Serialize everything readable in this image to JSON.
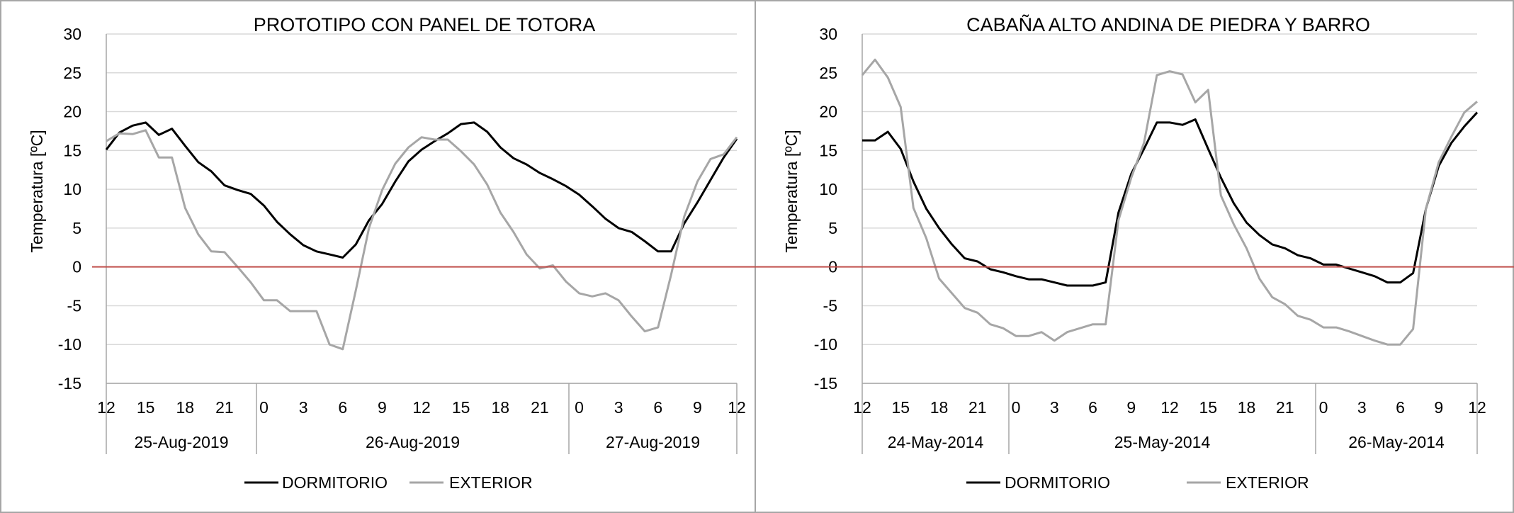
{
  "charts": [
    {
      "chart_data": {
        "type": "line",
        "title": "PROTOTIPO CON PANEL DE TOTORA",
        "ylabel": "Temperatura [ºC]",
        "xlabel": "",
        "ylim": [
          -15,
          30
        ],
        "y_ticks": [
          "30",
          "25",
          "20",
          "15",
          "10",
          "5",
          "0",
          "-5",
          "-10",
          "-15"
        ],
        "x_hour_ticks": [
          "12",
          "15",
          "18",
          "21",
          "0",
          "3",
          "6",
          "9",
          "12",
          "15",
          "18",
          "21",
          "0",
          "3",
          "6",
          "9",
          "12"
        ],
        "x_date_groups": [
          "25-Aug-2019",
          "26-Aug-2019",
          "27-Aug-2019"
        ],
        "grid": true,
        "legend_position": "bottom",
        "series": [
          {
            "name": "DORMITORIO",
            "color": "#000000",
            "values": [
              15.1,
              17.3,
              18.2,
              18.6,
              17.0,
              17.8,
              15.6,
              13.5,
              12.3,
              10.5,
              9.9,
              9.4,
              7.9,
              5.8,
              4.2,
              2.8,
              2.0,
              1.6,
              1.2,
              2.9,
              6.0,
              8.1,
              11.0,
              13.6,
              15.1,
              16.2,
              17.2,
              18.4,
              18.6,
              17.4,
              15.4,
              14.0,
              13.2,
              12.1,
              11.3,
              10.4,
              9.3,
              7.8,
              6.2,
              5.0,
              4.5,
              3.3,
              2.0,
              2.0,
              5.6,
              8.3,
              11.2,
              14.1,
              16.5
            ]
          },
          {
            "name": "EXTERIOR",
            "color": "#a6a6a6",
            "values": [
              16.2,
              17.2,
              17.1,
              17.6,
              14.1,
              14.1,
              7.6,
              4.2,
              2.0,
              1.9,
              0.0,
              -2.0,
              -4.3,
              -4.3,
              -5.7,
              -5.7,
              -5.7,
              -10.0,
              -10.6,
              -3.0,
              5.0,
              9.9,
              13.3,
              15.4,
              16.7,
              16.4,
              16.4,
              14.9,
              13.2,
              10.6,
              7.0,
              4.5,
              1.6,
              -0.2,
              0.2,
              -1.9,
              -3.4,
              -3.8,
              -3.4,
              -4.3,
              -6.4,
              -8.3,
              -7.8,
              -1.0,
              6.5,
              11.0,
              13.9,
              14.5,
              16.7
            ]
          }
        ]
      }
    },
    {
      "chart_data": {
        "type": "line",
        "title": "CABAÑA ALTO ANDINA DE PIEDRA Y BARRO",
        "ylabel": "Temperatura [ºC]",
        "xlabel": "",
        "ylim": [
          -15,
          30
        ],
        "y_ticks": [
          "30",
          "25",
          "20",
          "15",
          "10",
          "5",
          "0",
          "-5",
          "-10",
          "-15"
        ],
        "x_hour_ticks": [
          "12",
          "15",
          "18",
          "21",
          "0",
          "3",
          "6",
          "9",
          "12",
          "15",
          "18",
          "21",
          "0",
          "3",
          "6",
          "9",
          "12"
        ],
        "x_date_groups": [
          "24-May-2014",
          "25-May-2014",
          "26-May-2014"
        ],
        "grid": true,
        "legend_position": "bottom",
        "series": [
          {
            "name": "DORMITORIO",
            "color": "#000000",
            "values": [
              16.3,
              16.3,
              17.4,
              15.2,
              11.0,
              7.5,
              5.0,
              2.9,
              1.1,
              0.7,
              -0.3,
              -0.7,
              -1.2,
              -1.6,
              -1.6,
              -2.0,
              -2.4,
              -2.4,
              -2.4,
              -2.0,
              7.0,
              12.0,
              15.2,
              18.6,
              18.6,
              18.3,
              19.0,
              15.2,
              11.5,
              8.2,
              5.7,
              4.1,
              2.9,
              2.4,
              1.5,
              1.1,
              0.3,
              0.3,
              -0.2,
              -0.7,
              -1.2,
              -2.0,
              -2.0,
              -0.8,
              7.5,
              13.0,
              16.0,
              18.1,
              19.9
            ]
          },
          {
            "name": "EXTERIOR",
            "color": "#a6a6a6",
            "values": [
              24.7,
              26.7,
              24.4,
              20.6,
              7.6,
              3.7,
              -1.5,
              -3.4,
              -5.3,
              -5.9,
              -7.4,
              -7.9,
              -8.9,
              -8.9,
              -8.4,
              -9.5,
              -8.4,
              -7.9,
              -7.4,
              -7.4,
              6.0,
              11.5,
              16.0,
              24.7,
              25.2,
              24.8,
              21.2,
              22.8,
              9.2,
              5.5,
              2.4,
              -1.5,
              -3.9,
              -4.8,
              -6.3,
              -6.8,
              -7.8,
              -7.8,
              -8.3,
              -8.9,
              -9.5,
              -10.0,
              -10.0,
              -8.0,
              7.5,
              13.5,
              16.8,
              19.9,
              21.3
            ]
          }
        ]
      }
    }
  ]
}
